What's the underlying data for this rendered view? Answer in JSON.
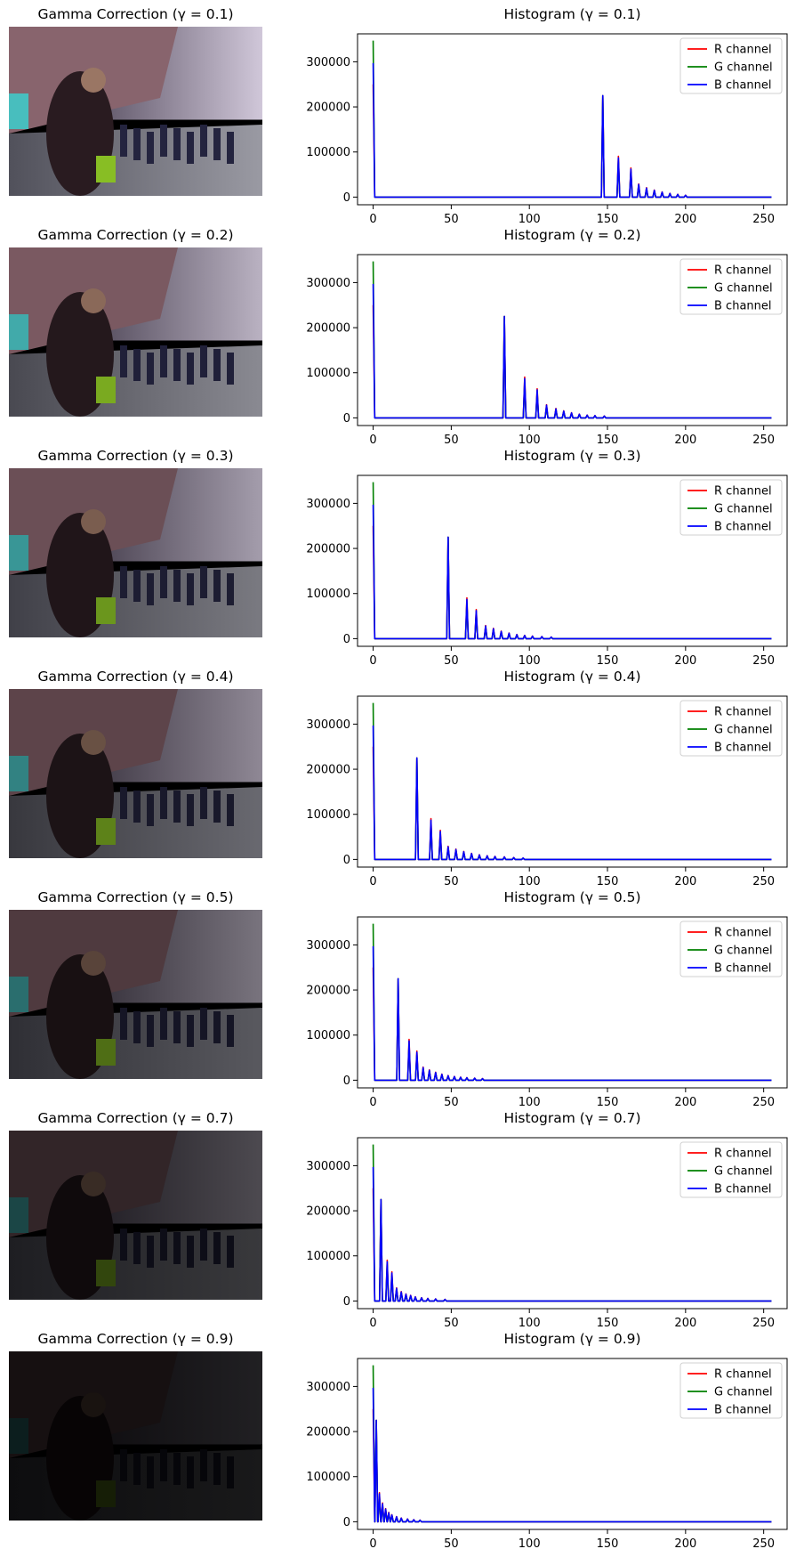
{
  "legend": [
    {
      "name": "R channel",
      "color": "#ff0000"
    },
    {
      "name": "G channel",
      "color": "#008000"
    },
    {
      "name": "B channel",
      "color": "#0000ff"
    }
  ],
  "chart_data": [
    {
      "gamma": "0.1",
      "image_title": "Gamma Correction (γ = 0.1)",
      "title": "Histogram (γ = 0.1)",
      "type": "line",
      "xlim": [
        -10,
        265
      ],
      "ylim": [
        -17000,
        362000
      ],
      "xticks": [
        "0",
        "50",
        "100",
        "150",
        "200",
        "250"
      ],
      "yticks": [
        "0",
        "100000",
        "200000",
        "300000"
      ],
      "zero_peaks": {
        "R": 250000,
        "G": 347000,
        "B": 297000
      },
      "peaks": [
        [
          147,
          225000
        ],
        [
          157,
          87000
        ],
        [
          165,
          62000
        ],
        [
          170,
          28000
        ],
        [
          175,
          20000
        ],
        [
          180,
          15000
        ],
        [
          185,
          11000
        ],
        [
          190,
          8000
        ],
        [
          195,
          6000
        ],
        [
          200,
          4000
        ]
      ]
    },
    {
      "gamma": "0.2",
      "image_title": "Gamma Correction (γ = 0.2)",
      "title": "Histogram (γ = 0.2)",
      "type": "line",
      "xlim": [
        -10,
        265
      ],
      "ylim": [
        -17000,
        362000
      ],
      "xticks": [
        "0",
        "50",
        "100",
        "150",
        "200",
        "250"
      ],
      "yticks": [
        "0",
        "100000",
        "200000",
        "300000"
      ],
      "zero_peaks": {
        "R": 250000,
        "G": 347000,
        "B": 297000
      },
      "peaks": [
        [
          84,
          225000
        ],
        [
          97,
          87000
        ],
        [
          105,
          62000
        ],
        [
          111,
          28000
        ],
        [
          117,
          20000
        ],
        [
          122,
          15000
        ],
        [
          127,
          11000
        ],
        [
          132,
          8000
        ],
        [
          137,
          6000
        ],
        [
          142,
          5000
        ],
        [
          148,
          4000
        ]
      ]
    },
    {
      "gamma": "0.3",
      "image_title": "Gamma Correction (γ = 0.3)",
      "title": "Histogram (γ = 0.3)",
      "type": "line",
      "xlim": [
        -10,
        265
      ],
      "ylim": [
        -17000,
        362000
      ],
      "xticks": [
        "0",
        "50",
        "100",
        "150",
        "200",
        "250"
      ],
      "yticks": [
        "0",
        "100000",
        "200000",
        "300000"
      ],
      "zero_peaks": {
        "R": 250000,
        "G": 347000,
        "B": 297000
      },
      "peaks": [
        [
          48,
          225000
        ],
        [
          60,
          87000
        ],
        [
          66,
          62000
        ],
        [
          72,
          28000
        ],
        [
          77,
          22000
        ],
        [
          82,
          16000
        ],
        [
          87,
          12000
        ],
        [
          92,
          9000
        ],
        [
          97,
          7000
        ],
        [
          102,
          5500
        ],
        [
          108,
          4500
        ],
        [
          114,
          3500
        ]
      ]
    },
    {
      "gamma": "0.4",
      "image_title": "Gamma Correction (γ = 0.4)",
      "title": "Histogram (γ = 0.4)",
      "type": "line",
      "xlim": [
        -10,
        265
      ],
      "ylim": [
        -17000,
        362000
      ],
      "xticks": [
        "0",
        "50",
        "100",
        "150",
        "200",
        "250"
      ],
      "yticks": [
        "0",
        "100000",
        "200000",
        "300000"
      ],
      "zero_peaks": {
        "R": 250000,
        "G": 347000,
        "B": 297000
      },
      "peaks": [
        [
          28,
          225000
        ],
        [
          37,
          87000
        ],
        [
          43,
          62000
        ],
        [
          48,
          28000
        ],
        [
          53,
          22000
        ],
        [
          58,
          17000
        ],
        [
          63,
          13000
        ],
        [
          68,
          10000
        ],
        [
          73,
          8000
        ],
        [
          78,
          6500
        ],
        [
          84,
          5500
        ],
        [
          90,
          4000
        ],
        [
          96,
          3000
        ]
      ]
    },
    {
      "gamma": "0.5",
      "image_title": "Gamma Correction (γ = 0.5)",
      "title": "Histogram (γ = 0.5)",
      "type": "line",
      "xlim": [
        -10,
        265
      ],
      "ylim": [
        -17000,
        362000
      ],
      "xticks": [
        "0",
        "50",
        "100",
        "150",
        "200",
        "250"
      ],
      "yticks": [
        "0",
        "100000",
        "200000",
        "300000"
      ],
      "zero_peaks": {
        "R": 250000,
        "G": 347000,
        "B": 297000
      },
      "peaks": [
        [
          16,
          225000
        ],
        [
          23,
          87000
        ],
        [
          28,
          62000
        ],
        [
          32,
          28000
        ],
        [
          36,
          22000
        ],
        [
          40,
          17000
        ],
        [
          44,
          13000
        ],
        [
          48,
          10000
        ],
        [
          52,
          8000
        ],
        [
          56,
          6500
        ],
        [
          60,
          5500
        ],
        [
          65,
          4500
        ],
        [
          70,
          3500
        ]
      ]
    },
    {
      "gamma": "0.7",
      "image_title": "Gamma Correction (γ = 0.7)",
      "title": "Histogram (γ = 0.7)",
      "type": "line",
      "xlim": [
        -10,
        265
      ],
      "ylim": [
        -17000,
        362000
      ],
      "xticks": [
        "0",
        "50",
        "100",
        "150",
        "200",
        "250"
      ],
      "yticks": [
        "0",
        "100000",
        "200000",
        "300000"
      ],
      "zero_peaks": {
        "R": 250000,
        "G": 347000,
        "B": 297000
      },
      "peaks": [
        [
          5,
          225000
        ],
        [
          9,
          87000
        ],
        [
          12,
          62000
        ],
        [
          15,
          28000
        ],
        [
          18,
          20000
        ],
        [
          21,
          15000
        ],
        [
          24,
          12000
        ],
        [
          27,
          9000
        ],
        [
          31,
          7000
        ],
        [
          35,
          5500
        ],
        [
          40,
          4500
        ],
        [
          46,
          3500
        ]
      ]
    },
    {
      "gamma": "0.9",
      "image_title": "Gamma Correction (γ = 0.9)",
      "title": "Histogram (γ = 0.9)",
      "type": "line",
      "xlim": [
        -10,
        265
      ],
      "ylim": [
        -17000,
        362000
      ],
      "xticks": [
        "0",
        "50",
        "100",
        "150",
        "200",
        "250"
      ],
      "yticks": [
        "0",
        "100000",
        "200000",
        "300000"
      ],
      "zero_peaks": {
        "R": 250000,
        "G": 347000,
        "B": 297000
      },
      "peaks": [
        [
          2,
          225000
        ],
        [
          4,
          62000
        ],
        [
          6,
          40000
        ],
        [
          8,
          28000
        ],
        [
          10,
          20000
        ],
        [
          12,
          15000
        ],
        [
          15,
          11000
        ],
        [
          18,
          8000
        ],
        [
          22,
          6000
        ],
        [
          26,
          4500
        ],
        [
          30,
          3500
        ]
      ]
    }
  ]
}
